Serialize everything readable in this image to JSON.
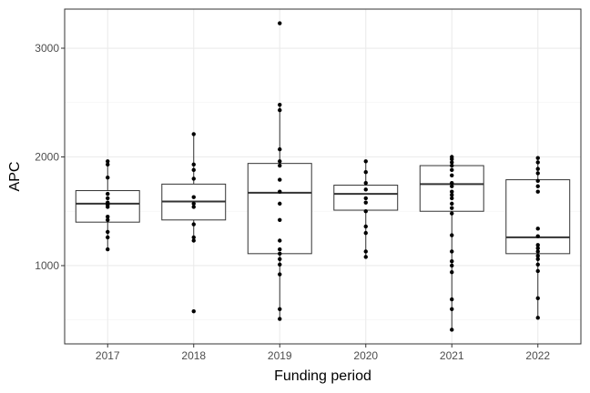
{
  "chart_data": {
    "type": "box",
    "xlabel": "Funding period",
    "ylabel": "APC",
    "categories": [
      "2017",
      "2018",
      "2019",
      "2020",
      "2021",
      "2022"
    ],
    "ylim": [
      280,
      3360
    ],
    "yticks": [
      1000,
      2000,
      3000
    ],
    "yticks_labels": [
      "1000",
      "2000",
      "3000"
    ],
    "grid": true,
    "boxes": [
      {
        "category": "2017",
        "q1": 1400,
        "median": 1570,
        "q3": 1690,
        "whisker_low": 1150,
        "whisker_high": 1960
      },
      {
        "category": "2018",
        "q1": 1420,
        "median": 1590,
        "q3": 1750,
        "whisker_low": 1230,
        "whisker_high": 2210
      },
      {
        "category": "2019",
        "q1": 1110,
        "median": 1670,
        "q3": 1940,
        "whisker_low": 510,
        "whisker_high": 2480
      },
      {
        "category": "2020",
        "q1": 1510,
        "median": 1660,
        "q3": 1740,
        "whisker_low": 1080,
        "whisker_high": 1960
      },
      {
        "category": "2021",
        "q1": 1500,
        "median": 1750,
        "q3": 1920,
        "whisker_low": 410,
        "whisker_high": 2000
      },
      {
        "category": "2022",
        "q1": 1110,
        "median": 1260,
        "q3": 1790,
        "whisker_low": 520,
        "whisker_high": 1990
      }
    ],
    "points": [
      {
        "category": "2017",
        "values": [
          1960,
          1930,
          1810,
          1660,
          1620,
          1580,
          1560,
          1540,
          1450,
          1420,
          1310,
          1260,
          1150
        ]
      },
      {
        "category": "2018",
        "values": [
          2210,
          1930,
          1880,
          1800,
          1630,
          1570,
          1540,
          1380,
          1260,
          1230,
          580
        ]
      },
      {
        "category": "2019",
        "values": [
          3230,
          2480,
          2430,
          2070,
          1960,
          1920,
          1790,
          1680,
          1570,
          1420,
          1230,
          1150,
          1110,
          1060,
          1010,
          920,
          600,
          510
        ]
      },
      {
        "category": "2020",
        "values": [
          1960,
          1860,
          1760,
          1700,
          1620,
          1580,
          1500,
          1360,
          1300,
          1130,
          1080
        ]
      },
      {
        "category": "2021",
        "values": [
          2000,
          1980,
          1950,
          1920,
          1880,
          1830,
          1760,
          1730,
          1680,
          1650,
          1620,
          1570,
          1530,
          1480,
          1280,
          1130,
          1040,
          1000,
          940,
          690,
          600,
          410
        ]
      },
      {
        "category": "2022",
        "values": [
          1990,
          1950,
          1890,
          1850,
          1780,
          1730,
          1680,
          1340,
          1270,
          1190,
          1160,
          1130,
          1090,
          1060,
          1010,
          950,
          700,
          520
        ]
      }
    ]
  }
}
